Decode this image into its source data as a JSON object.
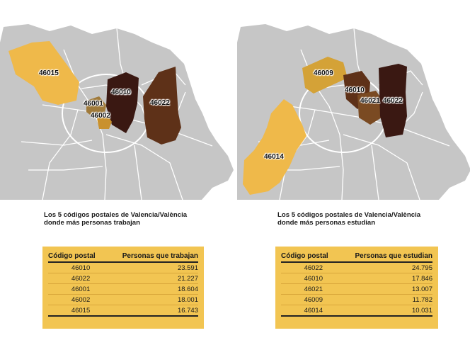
{
  "colors": {
    "base": "#c6c6c6",
    "rank_high": "#3a1812",
    "rank_mid": "#5e3118",
    "rank_low": "#a07a3a",
    "rank_yellow": "#efb94a",
    "table_bg": "#f2c552"
  },
  "left_map": {
    "labels": [
      "46015",
      "46010",
      "46022",
      "46001",
      "46002"
    ]
  },
  "right_map": {
    "labels": [
      "46009",
      "46010",
      "46021",
      "46022",
      "46014"
    ]
  },
  "left_panel": {
    "caption": "Los 5 códigos postales de Valencia/València donde más personas trabajan",
    "headers": [
      "Código postal",
      "Personas que trabajan"
    ],
    "rows": [
      [
        "46010",
        "23.591"
      ],
      [
        "46022",
        "21.227"
      ],
      [
        "46001",
        "18.604"
      ],
      [
        "46002",
        "18.001"
      ],
      [
        "46015",
        "16.743"
      ]
    ]
  },
  "right_panel": {
    "caption": "Los 5 códigos postales de Valencia/València donde más personas estudian",
    "headers": [
      "Código postal",
      "Personas que estudian"
    ],
    "rows": [
      [
        "46022",
        "24.795"
      ],
      [
        "46010",
        "17.846"
      ],
      [
        "46021",
        "13.007"
      ],
      [
        "46009",
        "11.782"
      ],
      [
        "46014",
        "10.031"
      ]
    ]
  }
}
